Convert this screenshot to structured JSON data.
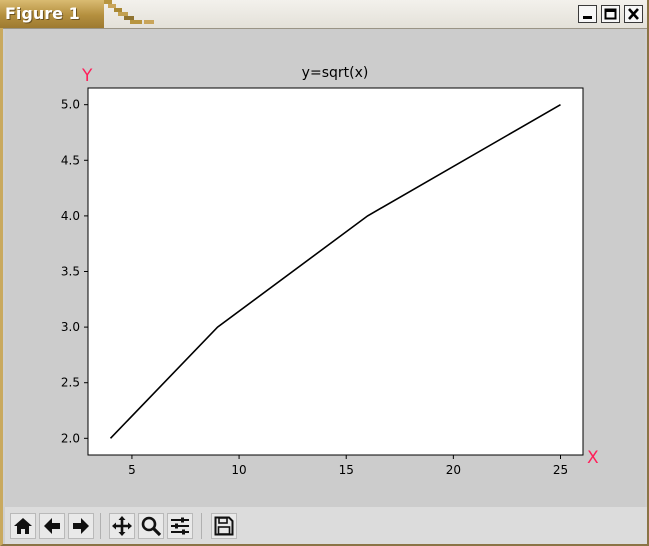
{
  "window": {
    "title": "Figure 1"
  },
  "title_buttons": [
    {
      "name": "minimize-icon"
    },
    {
      "name": "maximize-icon"
    },
    {
      "name": "close-icon"
    }
  ],
  "toolbar": {
    "buttons": [
      {
        "name": "home-icon"
      },
      {
        "name": "back-arrow-icon"
      },
      {
        "name": "forward-arrow-icon"
      },
      {
        "name": "pan-move-icon"
      },
      {
        "name": "zoom-magnifier-icon"
      },
      {
        "name": "configure-subplots-icon"
      },
      {
        "name": "save-floppy-icon"
      }
    ]
  },
  "colors": {
    "line": "#000000",
    "axis_name": "#ff1f5a",
    "figure_bg": "#cccccc",
    "axes_bg": "#ffffff"
  },
  "chart_data": {
    "type": "line",
    "title": "y=sqrt(x)",
    "xlabel": "X",
    "ylabel": "Y",
    "series": [
      {
        "x": [
          4,
          9,
          16,
          25
        ],
        "y": [
          2,
          3,
          4,
          5
        ]
      }
    ],
    "xlim": [
      2.95,
      26.05
    ],
    "ylim": [
      1.85,
      5.15
    ],
    "xticks": [
      5,
      10,
      15,
      20,
      25
    ],
    "xtick_labels": [
      "5",
      "10",
      "15",
      "20",
      "25"
    ],
    "yticks": [
      2.0,
      2.5,
      3.0,
      3.5,
      4.0,
      4.5,
      5.0
    ],
    "ytick_labels": [
      "2.0",
      "2.5",
      "3.0",
      "3.5",
      "4.0",
      "4.5",
      "5.0"
    ],
    "grid": false,
    "legend": false
  }
}
